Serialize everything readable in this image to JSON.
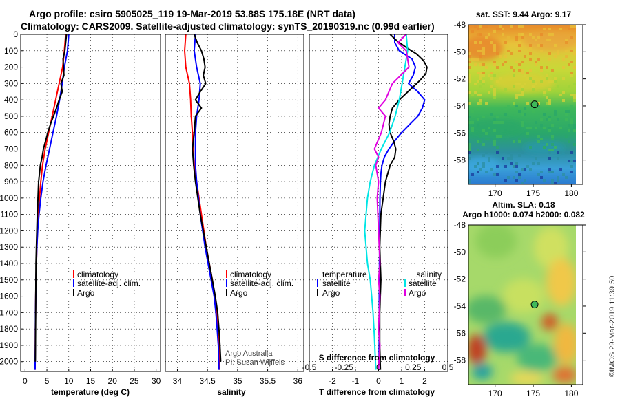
{
  "header": {
    "title_line1": "Argo profile: csiro 5905025_119 19-Mar-2019 53.88S 175.18E (NRT data)",
    "title_line2": "Climatology: CARS2009. Satellite-adjusted climatology: synTS_20190319.nc (0.99d earlier)"
  },
  "colors": {
    "climatology": "#ff0000",
    "satellite": "#0000ff",
    "argo": "#000000",
    "salinity_satellite": "#00e5e5",
    "salinity_argo": "#e000e0",
    "grid": "#000000"
  },
  "chart_data": [
    {
      "id": "temperature",
      "type": "line",
      "xlabel": "temperature (deg C)",
      "ylabel": "",
      "xlim": [
        -1,
        31
      ],
      "ylim": [
        2060,
        0
      ],
      "xticks": [
        0,
        5,
        10,
        15,
        20,
        25,
        30
      ],
      "xtick_labels": [
        "0",
        "5",
        "10",
        "15",
        "20",
        "25",
        "30"
      ],
      "yticks": [
        0,
        100,
        200,
        300,
        400,
        500,
        600,
        700,
        800,
        900,
        1000,
        1100,
        1200,
        1300,
        1400,
        1500,
        1600,
        1700,
        1800,
        1900,
        2000
      ],
      "ytick_labels": [
        "0",
        "100",
        "200",
        "300",
        "400",
        "500",
        "600",
        "700",
        "800",
        "900",
        "1000",
        "1100",
        "1200",
        "1300",
        "1400",
        "1500",
        "1600",
        "1700",
        "1800",
        "1900",
        "2000"
      ],
      "legend_position": "lower-center",
      "legend": [
        "climatology",
        "satellite-adj. clim.",
        "Argo"
      ],
      "series": [
        {
          "name": "climatology",
          "color": "#ff0000",
          "x": [
            9.3,
            9.0,
            8.6,
            7.8,
            7.0,
            6.2,
            5.4,
            4.6,
            4.0,
            3.6,
            3.3,
            3.0,
            2.85,
            2.7,
            2.6,
            2.5,
            2.45,
            2.4,
            2.38,
            2.35,
            2.3
          ],
          "y": [
            0,
            100,
            200,
            300,
            400,
            500,
            600,
            700,
            800,
            900,
            1000,
            1100,
            1200,
            1300,
            1400,
            1500,
            1600,
            1700,
            1800,
            1900,
            2050
          ]
        },
        {
          "name": "satellite-adj. clim.",
          "color": "#0000ff",
          "x": [
            10.0,
            9.7,
            9.0,
            8.5,
            7.9,
            7.2,
            6.4,
            5.6,
            4.8,
            4.1,
            3.6,
            3.2,
            2.9,
            2.7,
            2.6,
            2.5,
            2.45,
            2.4,
            2.38,
            2.35,
            2.3
          ],
          "y": [
            0,
            100,
            200,
            300,
            400,
            500,
            600,
            700,
            800,
            900,
            1000,
            1100,
            1200,
            1300,
            1400,
            1500,
            1600,
            1700,
            1800,
            1900,
            2050
          ]
        },
        {
          "name": "Argo",
          "color": "#000000",
          "x": [
            9.5,
            9.3,
            9.1,
            8.7,
            8.9,
            8.2,
            8.5,
            7.8,
            7.2,
            6.5,
            5.8,
            5.2,
            4.7,
            4.2,
            3.9,
            3.5,
            3.3,
            3.1,
            2.95,
            2.8,
            2.7,
            2.6,
            2.5,
            2.45,
            2.4,
            2.35
          ],
          "y": [
            0,
            50,
            100,
            150,
            250,
            300,
            350,
            400,
            450,
            500,
            550,
            600,
            650,
            700,
            750,
            800,
            850,
            900,
            1000,
            1100,
            1200,
            1300,
            1400,
            1600,
            1800,
            2000
          ]
        }
      ]
    },
    {
      "id": "salinity",
      "type": "line",
      "xlabel": "salinity",
      "xlim": [
        33.8,
        36.1
      ],
      "ylim": [
        2060,
        0
      ],
      "xticks": [
        34,
        34.5,
        35,
        35.5,
        36
      ],
      "xtick_labels": [
        "34",
        "34.5",
        "35",
        "35.5",
        "36"
      ],
      "legend_position": "lower-right",
      "legend": [
        "climatology",
        "satellite-adj. clim.",
        "Argo"
      ],
      "annotation_line1": "Argo Australia",
      "annotation_line2": "PI: Susan Wijffels",
      "series": [
        {
          "name": "climatology",
          "color": "#ff0000",
          "x": [
            34.14,
            34.12,
            34.14,
            34.2,
            34.22,
            34.23,
            34.25,
            34.26,
            34.28,
            34.32,
            34.36,
            34.4,
            34.44,
            34.48,
            34.53,
            34.58,
            34.62,
            34.65,
            34.67,
            34.69,
            34.7
          ],
          "y": [
            0,
            100,
            200,
            300,
            400,
            500,
            600,
            700,
            800,
            900,
            1000,
            1100,
            1200,
            1300,
            1400,
            1500,
            1600,
            1700,
            1800,
            1900,
            2050
          ]
        },
        {
          "name": "satellite-adj. clim.",
          "color": "#0000ff",
          "x": [
            34.3,
            34.28,
            34.32,
            34.38,
            34.36,
            34.32,
            34.3,
            34.3,
            34.3,
            34.32,
            34.35,
            34.38,
            34.42,
            34.46,
            34.51,
            34.56,
            34.61,
            34.64,
            34.66,
            34.68,
            34.69
          ],
          "y": [
            0,
            100,
            200,
            300,
            400,
            500,
            600,
            700,
            800,
            900,
            1000,
            1100,
            1200,
            1300,
            1400,
            1500,
            1600,
            1700,
            1800,
            1900,
            2050
          ]
        },
        {
          "name": "Argo",
          "color": "#000000",
          "x": [
            34.28,
            34.33,
            34.4,
            34.44,
            34.46,
            34.43,
            34.47,
            34.38,
            34.3,
            34.4,
            34.3,
            34.28,
            34.25,
            34.27,
            34.3,
            34.34,
            34.38,
            34.43,
            34.48,
            34.53,
            34.58,
            34.63,
            34.67,
            34.7,
            34.72
          ],
          "y": [
            0,
            50,
            100,
            150,
            200,
            250,
            300,
            350,
            400,
            450,
            500,
            600,
            700,
            800,
            900,
            1000,
            1100,
            1200,
            1300,
            1400,
            1500,
            1600,
            1700,
            1850,
            2000
          ]
        }
      ]
    },
    {
      "id": "differences",
      "type": "line",
      "xlabel": "T difference from climatology",
      "xlabel_top": "S difference from climatology",
      "xlim": [
        -3,
        3
      ],
      "ylim": [
        2060,
        0
      ],
      "xticks": [
        -2,
        -1,
        0,
        1,
        2
      ],
      "xtick_labels": [
        "-2",
        "-1",
        "0",
        "1",
        "2"
      ],
      "s_ticks": [
        -0.5,
        -0.25,
        0,
        0.25,
        0.5
      ],
      "s_tick_labels": [
        "-0.5",
        "-0.25",
        "0",
        "0.25",
        "0.5"
      ],
      "legend_position": "lower",
      "legend_left_title": "temperature",
      "legend_right_title": "salinity",
      "legend": [
        "satellite",
        "Argo",
        "satellite",
        "Argo"
      ],
      "series": [
        {
          "name": "temperature satellite",
          "color": "#0000ff",
          "x": [
            0.7,
            0.7,
            0.9,
            1.45,
            1.6,
            1.5,
            1.3,
            1.7,
            2.0,
            1.9,
            1.7,
            1.35,
            1.0,
            0.7,
            0.45,
            0.25,
            0.15,
            0.1,
            0.08,
            0.06,
            0.05,
            0.04,
            0.03,
            0.03,
            0.02
          ],
          "y": [
            0,
            50,
            100,
            150,
            200,
            250,
            300,
            350,
            400,
            450,
            500,
            550,
            600,
            650,
            700,
            750,
            800,
            850,
            900,
            1000,
            1200,
            1400,
            1600,
            1800,
            2000
          ]
        },
        {
          "name": "temperature Argo",
          "color": "#000000",
          "x": [
            0.5,
            0.8,
            1.2,
            1.65,
            1.95,
            2.1,
            2.05,
            1.8,
            1.5,
            1.2,
            0.9,
            0.6,
            0.5,
            0.45,
            0.5,
            0.65,
            0.75,
            0.7,
            0.5,
            0.3,
            0.1,
            0.05,
            0.1,
            0.05,
            0.05,
            0.08
          ],
          "y": [
            0,
            40,
            80,
            120,
            160,
            200,
            240,
            280,
            320,
            360,
            400,
            450,
            500,
            550,
            600,
            650,
            700,
            750,
            800,
            900,
            1100,
            1300,
            1500,
            1700,
            1900,
            2050
          ]
        },
        {
          "name": "salinity satellite",
          "color": "#00e5e5",
          "x": [
            0.2,
            0.21,
            0.19,
            0.17,
            0.15,
            0.12,
            0.08,
            0.02,
            -0.03,
            -0.06,
            -0.08,
            -0.09,
            -0.1,
            -0.09,
            -0.08,
            -0.06,
            -0.05,
            -0.04,
            -0.03,
            -0.02
          ],
          "y": [
            0,
            100,
            200,
            300,
            400,
            500,
            600,
            700,
            800,
            900,
            1000,
            1100,
            1200,
            1300,
            1400,
            1500,
            1600,
            1700,
            1850,
            2050
          ]
        },
        {
          "name": "salinity Argo",
          "color": "#e000e0",
          "x": [
            0.2,
            0.14,
            0.2,
            0.22,
            0.1,
            0.05,
            0.0,
            0.05,
            0.02,
            -0.03,
            0.0,
            -0.02,
            0.0,
            -0.01,
            0.0,
            0.01,
            0.0,
            0.01,
            0.0,
            0.01,
            0.0
          ],
          "y": [
            0,
            50,
            100,
            200,
            300,
            400,
            450,
            500,
            600,
            700,
            750,
            800,
            900,
            1000,
            1200,
            1400,
            1500,
            1600,
            1800,
            1900,
            2050
          ]
        }
      ]
    },
    {
      "id": "sst_map",
      "type": "heatmap",
      "title": "sat. SST: 9.44 Argo: 9.17",
      "xlim": [
        166.5,
        181.5
      ],
      "ylim": [
        -59.8,
        -48
      ],
      "xticks": [
        170,
        175,
        180
      ],
      "xtick_labels": [
        "170",
        "175",
        "180"
      ],
      "yticks": [
        -48,
        -50,
        -52,
        -54,
        -56,
        -58
      ],
      "ytick_labels": [
        "-48",
        "-50",
        "-52",
        "-54",
        "-56",
        "-58"
      ],
      "data_extent_lon": [
        166.5,
        180
      ],
      "marker": {
        "lon": 175.18,
        "lat": -53.88
      }
    },
    {
      "id": "sla_map",
      "type": "heatmap",
      "title_line1": "Altim. SLA: 0.18",
      "title_line2": "Argo h1000: 0.074 h2000: 0.082",
      "xlim": [
        166.5,
        181.5
      ],
      "ylim": [
        -59.8,
        -48
      ],
      "xticks": [
        170,
        175,
        180
      ],
      "xtick_labels": [
        "170",
        "175",
        "180"
      ],
      "yticks": [
        -48,
        -50,
        -52,
        -54,
        -56,
        -58
      ],
      "ytick_labels": [
        "-48",
        "-50",
        "-52",
        "-54",
        "-56",
        "-58"
      ],
      "data_extent_lon": [
        166.5,
        180
      ],
      "marker": {
        "lon": 175.18,
        "lat": -53.88
      }
    }
  ],
  "watermark": "©IMOS 29-Mar-2019 11:39:50"
}
